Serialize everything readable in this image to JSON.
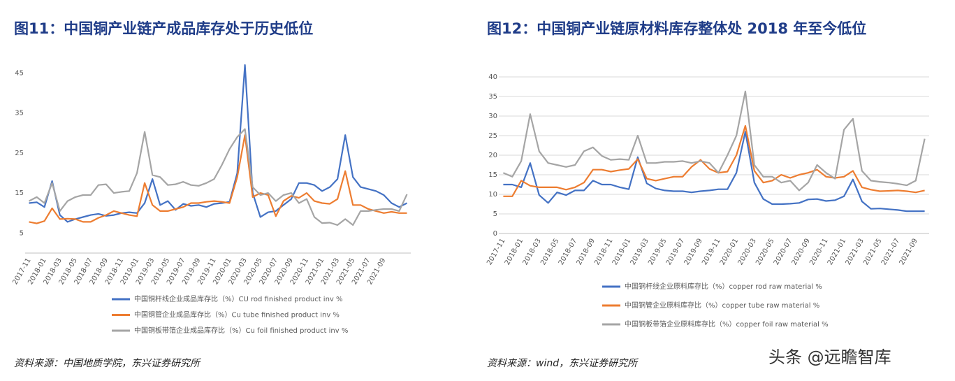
{
  "watermark": "头条 @远瞻智库",
  "chart_data": [
    {
      "type": "line",
      "title": "图11：中国铜产业链产成品库存处于历史低位",
      "source": "资料来源：中国地质学院，东兴证券研究所",
      "categories": [
        "2017-11",
        null,
        "2018-01",
        null,
        "2018-03",
        null,
        "2018-05",
        null,
        "2018-07",
        null,
        "2018-09",
        null,
        "2018-11",
        null,
        "2019-01",
        null,
        "2019-03",
        null,
        "2019-05",
        null,
        "2019-07",
        null,
        "2019-09",
        null,
        "2019-11",
        null,
        "2020-01",
        null,
        "2020-03",
        null,
        "2020-05",
        null,
        "2020-07",
        null,
        "2020-09",
        null,
        "2020-11",
        null,
        "2021-01",
        null,
        "2021-03",
        null,
        "2021-05",
        null,
        "2021-07",
        null,
        "2021-09",
        null,
        null,
        null
      ],
      "ylim": [
        0,
        47
      ],
      "yticks": [
        5,
        15,
        25,
        35,
        45
      ],
      "grid": false,
      "series": [
        {
          "name": "中国铜杆线企业成品库存比（%）CU rod finished product inv %",
          "color": "#4472c4",
          "values": [
            12.5,
            12.7,
            11.5,
            18,
            9.5,
            7.8,
            8.5,
            9,
            9.5,
            9.8,
            9.3,
            9.5,
            10,
            10.2,
            10,
            12.5,
            18.5,
            12,
            13,
            10.8,
            12.3,
            11.8,
            12,
            11.5,
            12.3,
            12.5,
            12.8,
            20,
            47,
            15,
            9,
            10.2,
            10.5,
            12,
            13.5,
            17.5,
            17.5,
            17,
            15.5,
            16.5,
            18.5,
            29.5,
            19,
            16.5,
            16,
            15.5,
            14.5,
            12.5,
            11.5,
            12.5
          ]
        },
        {
          "name": "中国铜管企业成品库存比（%）Cu tube finished product inv %",
          "color": "#ed7d31",
          "values": [
            7.8,
            7.4,
            8,
            11.2,
            8.5,
            8.6,
            8.5,
            7.8,
            7.8,
            8.8,
            9.5,
            10.5,
            10,
            9.5,
            9.2,
            17.5,
            12,
            10.5,
            10.5,
            11,
            11.5,
            12.5,
            12.5,
            12.8,
            13,
            12.8,
            12.5,
            19,
            29.5,
            14,
            15,
            14.5,
            9.2,
            13,
            14.3,
            13.8,
            15,
            13,
            12.5,
            12.3,
            13.5,
            20.5,
            12,
            12,
            11,
            10.5,
            10,
            10.3,
            10,
            10
          ]
        },
        {
          "name": "中国铜板带箔企业成品库存比（%）Cu foil finished product inv %",
          "color": "#a5a5a5",
          "values": [
            13,
            14,
            12.5,
            17.5,
            10.5,
            13,
            14,
            14.5,
            14.5,
            17,
            17.2,
            15,
            15.3,
            15.5,
            20,
            30.3,
            19.5,
            19,
            17,
            17.2,
            17.8,
            17,
            16.8,
            17.5,
            18.5,
            22,
            26,
            29,
            31,
            16.5,
            14.5,
            15,
            13,
            14.5,
            15,
            12.5,
            13.5,
            9,
            7.5,
            7.6,
            7,
            8.5,
            7,
            10.5,
            10.5,
            10.8,
            11,
            11,
            10.5,
            14.7
          ]
        }
      ]
    },
    {
      "type": "line",
      "title": "图12：中国铜产业链原材料库存整体处 2018 年至今低位",
      "source": "资料来源：wind，东兴证券研究所",
      "categories": [
        "2017-11",
        null,
        "2018-01",
        null,
        "2018-03",
        null,
        "2018-05",
        null,
        "2018-07",
        null,
        "2018-09",
        null,
        "2018-11",
        null,
        "2019-01",
        null,
        "2019-03",
        null,
        "2019-05",
        null,
        "2019-07",
        null,
        "2019-09",
        null,
        "2019-11",
        null,
        "2020-01",
        null,
        "2020-03",
        null,
        "2020-05",
        null,
        "2020-07",
        null,
        "2020-09",
        null,
        "2020-11",
        null,
        "2021-01",
        null,
        "2021-03",
        null,
        "2021-05",
        null,
        "2021-07",
        null,
        "2021-09",
        null
      ],
      "ylim": [
        0,
        40
      ],
      "yticks": [
        0,
        5,
        10,
        15,
        20,
        25,
        30,
        35,
        40
      ],
      "grid": true,
      "series": [
        {
          "name": "中国铜杆线企业原料库存比（%）copper rod raw material %",
          "color": "#4472c4",
          "values": [
            12.5,
            12.5,
            11.8,
            18,
            9.8,
            7.8,
            10.5,
            9.8,
            11,
            11,
            13.5,
            12.5,
            12.5,
            11.8,
            11.3,
            19.5,
            12.8,
            11.5,
            11,
            10.8,
            10.8,
            10.5,
            10.8,
            11,
            11.3,
            11.3,
            15.5,
            26,
            13,
            8.8,
            7.5,
            7.5,
            7.6,
            7.8,
            8.7,
            8.8,
            8.3,
            8.5,
            9.5,
            13.8,
            8.2,
            6.3,
            6.4,
            6.2,
            6,
            5.7,
            5.7,
            5.7
          ]
        },
        {
          "name": "中国铜管企业原料库存比（%）copper tube raw material %",
          "color": "#ed7d31",
          "values": [
            9.5,
            9.5,
            13.5,
            12.2,
            11.8,
            11.8,
            11.8,
            11.2,
            11.8,
            13,
            16.3,
            16.3,
            15.8,
            16.2,
            16.5,
            19,
            14,
            13.5,
            14,
            14.5,
            14.5,
            17,
            18.8,
            16.5,
            15.5,
            15.8,
            20,
            27.5,
            16,
            13,
            13.5,
            15,
            14.2,
            15,
            15.5,
            16.3,
            14.5,
            14.2,
            14.5,
            16,
            11.8,
            11.2,
            10.8,
            10.9,
            11,
            10.8,
            10.5,
            11
          ]
        },
        {
          "name": "中国铜板带箔企业原料库存比（%）copper foil raw material %",
          "color": "#a5a5a5",
          "values": [
            15.5,
            14.5,
            18.5,
            30.5,
            21,
            18,
            17.5,
            17,
            17.5,
            21,
            22,
            19.8,
            18.8,
            19,
            18.8,
            25,
            18,
            18,
            18.3,
            18.3,
            18.5,
            18,
            18.5,
            18,
            15.5,
            20,
            25,
            36.3,
            17.5,
            14.5,
            14.5,
            13,
            13.5,
            11,
            13,
            17.5,
            15.5,
            14,
            26.5,
            29.3,
            16,
            13.5,
            13.2,
            13,
            12.7,
            12.3,
            13.5,
            24.2
          ]
        }
      ]
    }
  ]
}
